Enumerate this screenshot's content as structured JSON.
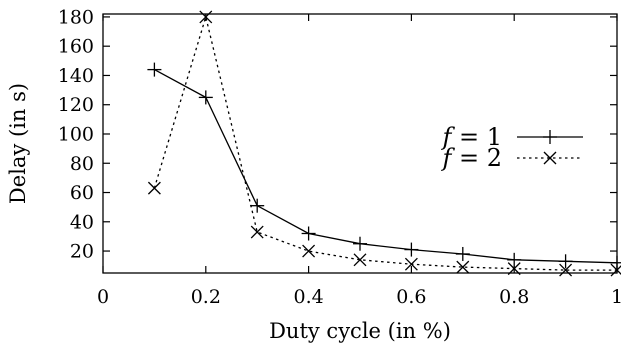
{
  "chart_data": {
    "type": "line",
    "xlabel": "Duty cycle (in %)",
    "ylabel": "Delay (in s)",
    "xlim": [
      0,
      1
    ],
    "ylim": [
      5,
      182
    ],
    "xticks": [
      0,
      0.2,
      0.4,
      0.6,
      0.8,
      1
    ],
    "xtick_labels": [
      "0",
      "0.2",
      "0.4",
      "0.6",
      "0.8",
      "1"
    ],
    "yticks": [
      20,
      40,
      60,
      80,
      100,
      120,
      140,
      160,
      180
    ],
    "ytick_labels": [
      "20",
      "40",
      "60",
      "80",
      "100",
      "120",
      "140",
      "160",
      "180"
    ],
    "grid": false,
    "legend_position": "right",
    "series": [
      {
        "name_var": "f",
        "name_op": " = ",
        "name_val": "1",
        "line_style": "solid",
        "marker": "plus",
        "x": [
          0.1,
          0.2,
          0.3,
          0.4,
          0.5,
          0.6,
          0.7,
          0.8,
          0.9,
          1.0
        ],
        "y": [
          144,
          125,
          51,
          32,
          25,
          21,
          18,
          14,
          13,
          12
        ]
      },
      {
        "name_var": "f",
        "name_op": " = ",
        "name_val": "2",
        "line_style": "dotted",
        "marker": "cross",
        "x": [
          0.1,
          0.2,
          0.3,
          0.4,
          0.5,
          0.6,
          0.7,
          0.8,
          0.9,
          1.0
        ],
        "y": [
          63,
          180,
          33,
          20,
          14,
          11,
          9,
          8,
          7,
          7
        ]
      }
    ]
  }
}
